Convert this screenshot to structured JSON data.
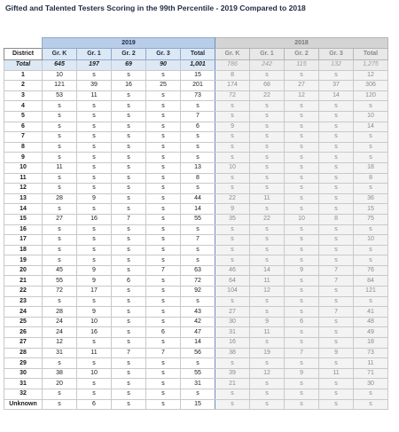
{
  "title": "Gifted and Talented Testers Scoring in the 99th Percentile - 2019 Compared to 2018",
  "year_2019": "2019",
  "year_2018": "2018",
  "district_header": "District",
  "grade_headers_2019": [
    "Gr. K",
    "Gr. 1",
    "Gr. 2",
    "Gr. 3",
    "Total"
  ],
  "grade_headers_2018": [
    "Gr. K",
    "Gr. 1",
    "Gr. 2",
    "Gr. 3",
    "Total"
  ],
  "total_row": {
    "district": "Total",
    "y2019": [
      "645",
      "197",
      "69",
      "90",
      "1,001"
    ],
    "y2018": [
      "786",
      "242",
      "115",
      "132",
      "1,275"
    ]
  },
  "rows": [
    {
      "district": "1",
      "y2019": [
        "10",
        "s",
        "s",
        "s",
        "15"
      ],
      "y2018": [
        "8",
        "s",
        "s",
        "s",
        "12"
      ]
    },
    {
      "district": "2",
      "y2019": [
        "121",
        "39",
        "16",
        "25",
        "201"
      ],
      "y2018": [
        "174",
        "68",
        "27",
        "37",
        "306"
      ]
    },
    {
      "district": "3",
      "y2019": [
        "53",
        "11",
        "s",
        "s",
        "73"
      ],
      "y2018": [
        "72",
        "22",
        "12",
        "14",
        "120"
      ]
    },
    {
      "district": "4",
      "y2019": [
        "s",
        "s",
        "s",
        "s",
        "s"
      ],
      "y2018": [
        "s",
        "s",
        "s",
        "s",
        "s"
      ]
    },
    {
      "district": "5",
      "y2019": [
        "s",
        "s",
        "s",
        "s",
        "7"
      ],
      "y2018": [
        "s",
        "s",
        "s",
        "s",
        "10"
      ]
    },
    {
      "district": "6",
      "y2019": [
        "s",
        "s",
        "s",
        "s",
        "6"
      ],
      "y2018": [
        "9",
        "s",
        "s",
        "s",
        "14"
      ]
    },
    {
      "district": "7",
      "y2019": [
        "s",
        "s",
        "s",
        "s",
        "s"
      ],
      "y2018": [
        "s",
        "s",
        "s",
        "s",
        "s"
      ]
    },
    {
      "district": "8",
      "y2019": [
        "s",
        "s",
        "s",
        "s",
        "s"
      ],
      "y2018": [
        "s",
        "s",
        "s",
        "s",
        "s"
      ]
    },
    {
      "district": "9",
      "y2019": [
        "s",
        "s",
        "s",
        "s",
        "s"
      ],
      "y2018": [
        "s",
        "s",
        "s",
        "s",
        "s"
      ]
    },
    {
      "district": "10",
      "y2019": [
        "11",
        "s",
        "s",
        "s",
        "13"
      ],
      "y2018": [
        "10",
        "s",
        "s",
        "s",
        "18"
      ]
    },
    {
      "district": "11",
      "y2019": [
        "s",
        "s",
        "s",
        "s",
        "8"
      ],
      "y2018": [
        "s",
        "s",
        "s",
        "s",
        "8"
      ]
    },
    {
      "district": "12",
      "y2019": [
        "s",
        "s",
        "s",
        "s",
        "s"
      ],
      "y2018": [
        "s",
        "s",
        "s",
        "s",
        "s"
      ]
    },
    {
      "district": "13",
      "y2019": [
        "28",
        "9",
        "s",
        "s",
        "44"
      ],
      "y2018": [
        "22",
        "11",
        "s",
        "s",
        "36"
      ]
    },
    {
      "district": "14",
      "y2019": [
        "s",
        "s",
        "s",
        "s",
        "14"
      ],
      "y2018": [
        "9",
        "s",
        "s",
        "s",
        "15"
      ]
    },
    {
      "district": "15",
      "y2019": [
        "27",
        "16",
        "7",
        "s",
        "55"
      ],
      "y2018": [
        "35",
        "22",
        "10",
        "8",
        "75"
      ]
    },
    {
      "district": "16",
      "y2019": [
        "s",
        "s",
        "s",
        "s",
        "s"
      ],
      "y2018": [
        "s",
        "s",
        "s",
        "s",
        "s"
      ]
    },
    {
      "district": "17",
      "y2019": [
        "s",
        "s",
        "s",
        "s",
        "7"
      ],
      "y2018": [
        "s",
        "s",
        "s",
        "s",
        "10"
      ]
    },
    {
      "district": "18",
      "y2019": [
        "s",
        "s",
        "s",
        "s",
        "s"
      ],
      "y2018": [
        "s",
        "s",
        "s",
        "s",
        "s"
      ]
    },
    {
      "district": "19",
      "y2019": [
        "s",
        "s",
        "s",
        "s",
        "s"
      ],
      "y2018": [
        "s",
        "s",
        "s",
        "s",
        "s"
      ]
    },
    {
      "district": "20",
      "y2019": [
        "45",
        "9",
        "s",
        "7",
        "63"
      ],
      "y2018": [
        "46",
        "14",
        "9",
        "7",
        "76"
      ]
    },
    {
      "district": "21",
      "y2019": [
        "55",
        "9",
        "6",
        "s",
        "72"
      ],
      "y2018": [
        "64",
        "11",
        "s",
        "7",
        "84"
      ]
    },
    {
      "district": "22",
      "y2019": [
        "72",
        "17",
        "s",
        "s",
        "92"
      ],
      "y2018": [
        "104",
        "12",
        "s",
        "s",
        "121"
      ]
    },
    {
      "district": "23",
      "y2019": [
        "s",
        "s",
        "s",
        "s",
        "s"
      ],
      "y2018": [
        "s",
        "s",
        "s",
        "s",
        "s"
      ]
    },
    {
      "district": "24",
      "y2019": [
        "28",
        "9",
        "s",
        "s",
        "43"
      ],
      "y2018": [
        "27",
        "s",
        "s",
        "7",
        "41"
      ]
    },
    {
      "district": "25",
      "y2019": [
        "24",
        "10",
        "s",
        "s",
        "42"
      ],
      "y2018": [
        "30",
        "9",
        "6",
        "s",
        "48"
      ]
    },
    {
      "district": "26",
      "y2019": [
        "24",
        "16",
        "s",
        "6",
        "47"
      ],
      "y2018": [
        "31",
        "11",
        "s",
        "s",
        "49"
      ]
    },
    {
      "district": "27",
      "y2019": [
        "12",
        "s",
        "s",
        "s",
        "14"
      ],
      "y2018": [
        "16",
        "s",
        "s",
        "s",
        "18"
      ]
    },
    {
      "district": "28",
      "y2019": [
        "31",
        "11",
        "7",
        "7",
        "56"
      ],
      "y2018": [
        "38",
        "19",
        "7",
        "9",
        "73"
      ]
    },
    {
      "district": "29",
      "y2019": [
        "s",
        "s",
        "s",
        "s",
        "s"
      ],
      "y2018": [
        "s",
        "s",
        "s",
        "s",
        "11"
      ]
    },
    {
      "district": "30",
      "y2019": [
        "38",
        "10",
        "s",
        "s",
        "55"
      ],
      "y2018": [
        "39",
        "12",
        "9",
        "11",
        "71"
      ]
    },
    {
      "district": "31",
      "y2019": [
        "20",
        "s",
        "s",
        "s",
        "31"
      ],
      "y2018": [
        "21",
        "s",
        "s",
        "s",
        "30"
      ]
    },
    {
      "district": "32",
      "y2019": [
        "s",
        "s",
        "s",
        "s",
        "s"
      ],
      "y2018": [
        "s",
        "s",
        "s",
        "s",
        "s"
      ]
    },
    {
      "district": "Unknown",
      "y2019": [
        "s",
        "6",
        "s",
        "s",
        "15"
      ],
      "y2018": [
        "s",
        "s",
        "s",
        "s",
        "s"
      ]
    }
  ]
}
